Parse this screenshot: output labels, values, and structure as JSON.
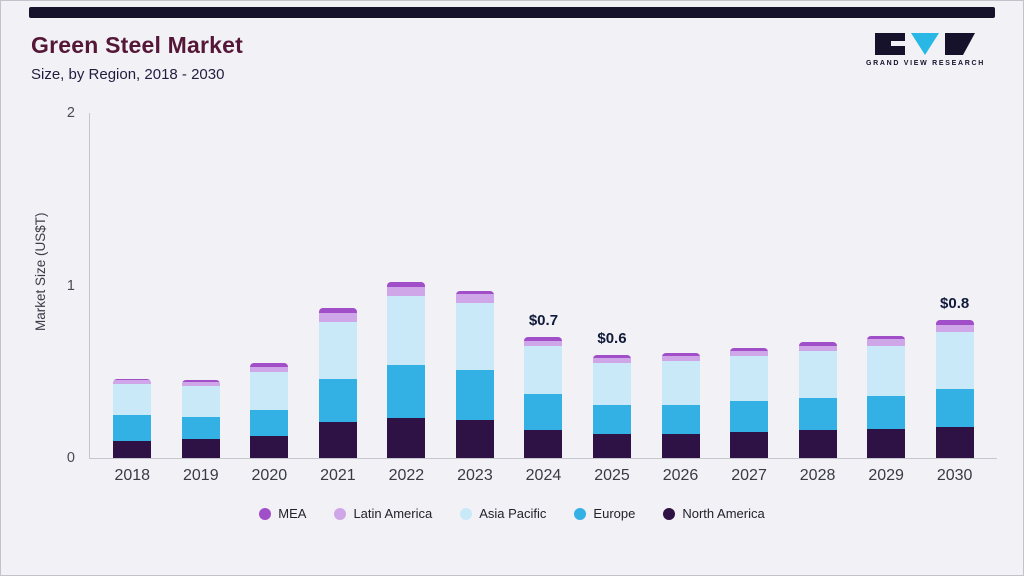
{
  "header": {
    "title": "Green Steel Market",
    "subtitle": "Size, by Region, 2018 - 2030",
    "logo_text": "GRAND VIEW RESEARCH"
  },
  "chart_data": {
    "type": "bar",
    "stacked": true,
    "title": "Green Steel Market Size, by Region, 2018 - 2030",
    "xlabel": "",
    "ylabel": "Market Size (US$T)",
    "ylim": [
      0,
      2
    ],
    "yticks": [
      0,
      1,
      2
    ],
    "grid": false,
    "legend_position": "bottom",
    "categories": [
      "2018",
      "2019",
      "2020",
      "2021",
      "2022",
      "2023",
      "2024",
      "2025",
      "2026",
      "2027",
      "2028",
      "2029",
      "2030"
    ],
    "series": [
      {
        "name": "North America",
        "values": [
          0.1,
          0.11,
          0.13,
          0.21,
          0.23,
          0.22,
          0.16,
          0.14,
          0.14,
          0.15,
          0.16,
          0.17,
          0.18
        ]
      },
      {
        "name": "Europe",
        "values": [
          0.15,
          0.13,
          0.15,
          0.25,
          0.31,
          0.29,
          0.21,
          0.17,
          0.17,
          0.18,
          0.19,
          0.19,
          0.22
        ]
      },
      {
        "name": "Asia Pacific",
        "values": [
          0.18,
          0.18,
          0.22,
          0.33,
          0.4,
          0.39,
          0.28,
          0.24,
          0.25,
          0.26,
          0.27,
          0.29,
          0.33
        ]
      },
      {
        "name": "Latin America",
        "values": [
          0.02,
          0.02,
          0.03,
          0.05,
          0.05,
          0.05,
          0.03,
          0.03,
          0.03,
          0.03,
          0.03,
          0.04,
          0.04
        ]
      },
      {
        "name": "MEA",
        "values": [
          0.01,
          0.01,
          0.02,
          0.03,
          0.03,
          0.02,
          0.02,
          0.02,
          0.02,
          0.02,
          0.02,
          0.02,
          0.03
        ]
      }
    ],
    "colors": {
      "North America": "#2e1245",
      "Europe": "#33b1e4",
      "Asia Pacific": "#c9e9f8",
      "Latin America": "#cfa6e8",
      "MEA": "#a14fc9"
    },
    "legend_order": [
      "MEA",
      "Latin America",
      "Asia Pacific",
      "Europe",
      "North America"
    ],
    "annotations": {
      "2024": "$0.7",
      "2025": "$0.6",
      "2030": "$0.8"
    }
  },
  "theme": {
    "background": "#f2f1f5",
    "accent_bar": "#16122b",
    "title_color": "#541738",
    "subtitle_color": "#221d40",
    "logo_dark": "#16122b",
    "logo_cyan": "#29b8e5"
  }
}
